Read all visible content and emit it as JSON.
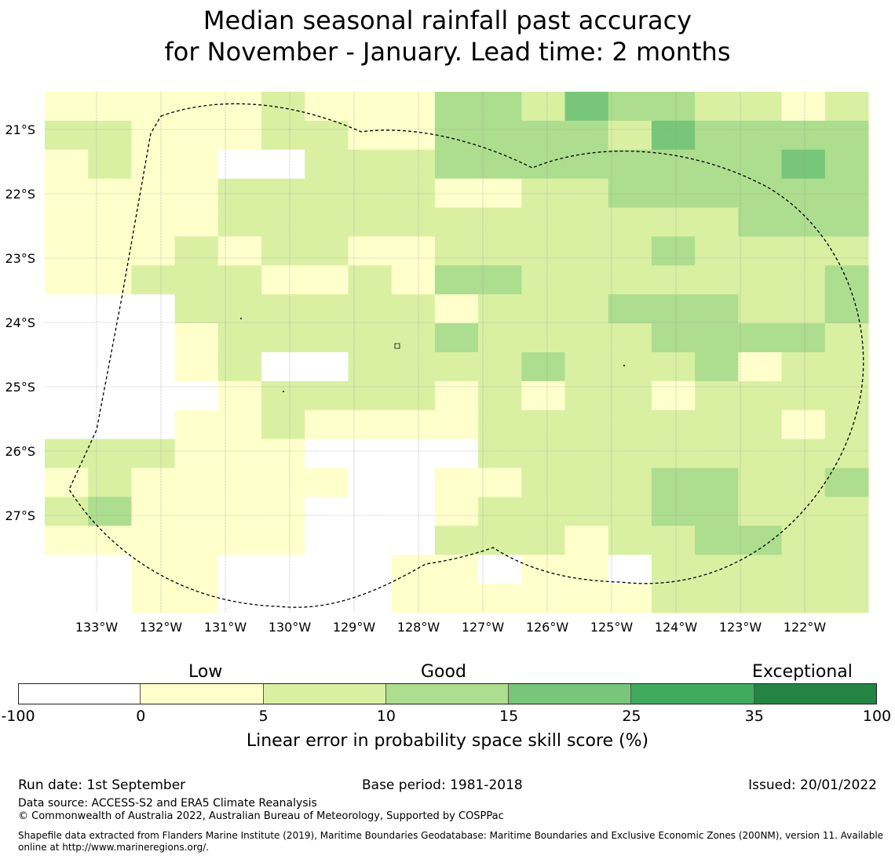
{
  "title": {
    "line1": "Median seasonal rainfall past accuracy",
    "line2": "for November - January. Lead time: 2 months"
  },
  "map": {
    "latitude_labels": [
      "21°S",
      "22°S",
      "23°S",
      "24°S",
      "25°S",
      "26°S",
      "27°S"
    ],
    "longitude_labels": [
      "133°W",
      "132°W",
      "131°W",
      "130°W",
      "129°W",
      "128°W",
      "127°W",
      "126°W",
      "125°W",
      "124°W",
      "123°W",
      "122°W"
    ],
    "boundary": "Exclusive Economic Zone (dashed)",
    "grid_lines": true,
    "score_classes": [
      {
        "range": "-100 to 0",
        "color": "#ffffff"
      },
      {
        "range": "0 to 5",
        "color": "#ffffcc"
      },
      {
        "range": "5 to 10",
        "color": "#d9f0a3"
      },
      {
        "range": "10 to 15",
        "color": "#addd8e"
      },
      {
        "range": "15 to 25",
        "color": "#78c679"
      },
      {
        "range": "25 to 35",
        "color": "#41ab5d"
      },
      {
        "range": "35 to 100",
        "color": "#238443"
      }
    ],
    "grid_classes": [
      "1111121113324332212",
      "2211122113333243333",
      "1211002223333333343",
      "1111222221122333333",
      "1111222222222222333",
      "1112122112222232222",
      "1122211213322222223",
      "0002222221222333223",
      "0001222223222233332",
      "0001200222232223122",
      "0000122221212212222",
      "0001121111222222212",
      "2221110000222222222",
      "1211111001122233223",
      "2311110001222233222",
      "1111110002221223322",
      "0011000011011022222",
      "0011000011111122222"
    ]
  },
  "legend": {
    "categories": [
      "Low",
      "Good",
      "Exceptional"
    ],
    "ticks": [
      "-100",
      "0",
      "5",
      "10",
      "15",
      "25",
      "35",
      "100"
    ],
    "colors": [
      "#ffffff",
      "#ffffcc",
      "#d9f0a3",
      "#addd8e",
      "#78c679",
      "#41ab5d",
      "#238443"
    ],
    "xlabel": "Linear error in probability space skill score (%)"
  },
  "footer": {
    "run_date": "Run date: 1st September",
    "base_period": "Base period: 1981-2018",
    "issued": "Issued: 20/01/2022",
    "data_source": "Data source: ACCESS-S2 and ERA5 Climate Reanalysis",
    "copyright": "© Commonwealth of Australia 2022, Australian Bureau of Meteorology, Supported by COSPPac",
    "shapefile": "Shapefile data extracted from Flanders Marine Institute (2019), Maritime Boundaries Geodatabase: Maritime Boundaries and Exclusive Economic Zones (200NM), version 11. Available online at http://www.marineregions.org/."
  }
}
